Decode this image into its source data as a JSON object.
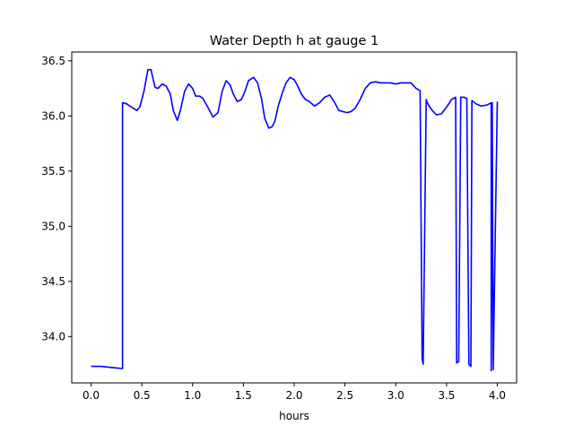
{
  "chart_data": {
    "type": "line",
    "title": "Water Depth h at gauge 1",
    "xlabel": "hours",
    "ylabel": "",
    "xlim": [
      -0.19,
      4.19
    ],
    "ylim": [
      33.58,
      36.58
    ],
    "xticks": [
      0.0,
      0.5,
      1.0,
      1.5,
      2.0,
      2.5,
      3.0,
      3.5,
      4.0
    ],
    "xtick_labels": [
      "0.0",
      "0.5",
      "1.0",
      "1.5",
      "2.0",
      "2.5",
      "3.0",
      "3.5",
      "4.0"
    ],
    "yticks": [
      34.0,
      34.5,
      35.0,
      35.5,
      36.0,
      36.5
    ],
    "ytick_labels": [
      "34.0",
      "34.5",
      "35.0",
      "35.5",
      "36.0",
      "36.5"
    ],
    "grid": false,
    "legend": "none",
    "series": [
      {
        "color": "#0000ff",
        "x": [
          0.0,
          0.1,
          0.2,
          0.31,
          0.31,
          0.35,
          0.4,
          0.45,
          0.48,
          0.52,
          0.56,
          0.59,
          0.63,
          0.66,
          0.7,
          0.74,
          0.78,
          0.81,
          0.85,
          0.88,
          0.92,
          0.96,
          1.0,
          1.03,
          1.07,
          1.1,
          1.15,
          1.2,
          1.25,
          1.29,
          1.33,
          1.37,
          1.4,
          1.44,
          1.48,
          1.51,
          1.55,
          1.6,
          1.64,
          1.68,
          1.71,
          1.75,
          1.78,
          1.81,
          1.84,
          1.88,
          1.92,
          1.96,
          2.0,
          2.03,
          2.07,
          2.11,
          2.15,
          2.2,
          2.25,
          2.3,
          2.35,
          2.4,
          2.44,
          2.48,
          2.52,
          2.56,
          2.6,
          2.65,
          2.7,
          2.75,
          2.8,
          2.85,
          2.9,
          2.95,
          3.0,
          3.05,
          3.1,
          3.15,
          3.2,
          3.24,
          3.26,
          3.27,
          3.3,
          3.31,
          3.35,
          3.4,
          3.45,
          3.5,
          3.55,
          3.59,
          3.6,
          3.61,
          3.62,
          3.64,
          3.67,
          3.7,
          3.72,
          3.74,
          3.75,
          3.79,
          3.84,
          3.9,
          3.94,
          3.94,
          3.95,
          3.96,
          4.0
        ],
        "y": [
          33.73,
          33.73,
          33.72,
          33.71,
          36.12,
          36.11,
          36.08,
          36.05,
          36.08,
          36.22,
          36.42,
          36.42,
          36.26,
          36.25,
          36.29,
          36.27,
          36.2,
          36.05,
          35.96,
          36.05,
          36.22,
          36.29,
          36.25,
          36.18,
          36.18,
          36.16,
          36.08,
          35.99,
          36.03,
          36.22,
          36.32,
          36.28,
          36.2,
          36.13,
          36.15,
          36.21,
          36.32,
          36.35,
          36.3,
          36.15,
          35.98,
          35.89,
          35.9,
          35.95,
          36.08,
          36.2,
          36.3,
          36.35,
          36.33,
          36.28,
          36.2,
          36.15,
          36.13,
          36.09,
          36.12,
          36.17,
          36.19,
          36.12,
          36.05,
          36.04,
          36.03,
          36.04,
          36.07,
          36.15,
          36.25,
          36.3,
          36.31,
          36.3,
          36.3,
          36.3,
          36.29,
          36.3,
          36.3,
          36.3,
          36.25,
          36.23,
          33.8,
          33.75,
          36.15,
          36.12,
          36.06,
          36.01,
          36.02,
          36.08,
          36.15,
          36.17,
          33.76,
          33.77,
          33.77,
          36.17,
          36.17,
          36.16,
          33.75,
          33.73,
          36.14,
          36.11,
          36.09,
          36.1,
          36.12,
          33.69,
          36.12,
          33.7,
          36.13
        ]
      }
    ]
  }
}
